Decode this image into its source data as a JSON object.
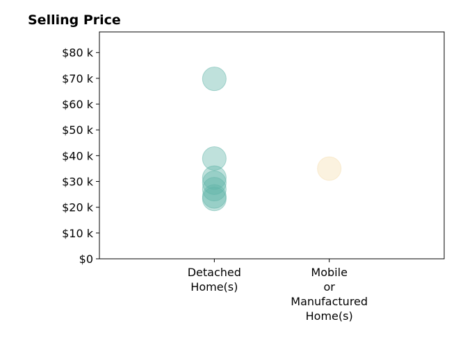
{
  "chart_data": {
    "type": "scatter",
    "title": "Selling Price",
    "xlabel": "",
    "ylabel": "",
    "categories": [
      [
        "Detached",
        "Home(s)"
      ],
      [
        "Mobile",
        "or",
        "Manufactured",
        "Home(s)"
      ]
    ],
    "y_ticks": [
      0,
      10000,
      20000,
      30000,
      40000,
      50000,
      60000,
      70000,
      80000
    ],
    "y_tick_labels": [
      "$0",
      "$10 k",
      "$20 k",
      "$30 k",
      "$40 k",
      "$50 k",
      "$60 k",
      "$70 k",
      "$80 k"
    ],
    "ylim": [
      0,
      88000
    ],
    "xlim": [
      -1,
      2
    ],
    "grid": false,
    "legend": "none",
    "series": [
      {
        "category_index": 0,
        "color": "#5fb3a8",
        "values": [
          69800,
          38900,
          31500,
          29500,
          27000,
          24200,
          23200
        ]
      },
      {
        "category_index": 1,
        "color": "#f5deb0",
        "values": [
          35000
        ]
      }
    ]
  }
}
